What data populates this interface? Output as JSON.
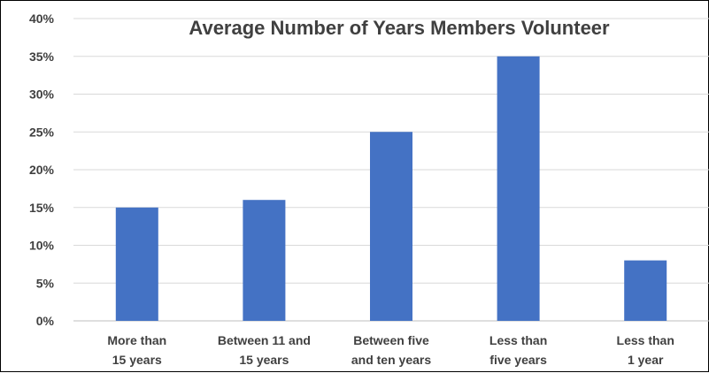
{
  "chart_data": {
    "type": "bar",
    "title": "Average Number of Years Members Volunteer",
    "categories": [
      [
        "More than",
        "15 years"
      ],
      [
        "Between 11 and",
        "15 years"
      ],
      [
        "Between five",
        "and ten years"
      ],
      [
        "Less than",
        "five years"
      ],
      [
        "Less than",
        "1 year"
      ]
    ],
    "values": [
      15,
      16,
      25,
      35,
      8
    ],
    "ylim": [
      0,
      40
    ],
    "yticks": [
      "0%",
      "5%",
      "10%",
      "15%",
      "20%",
      "25%",
      "30%",
      "35%",
      "40%"
    ],
    "grid": true,
    "bar_color": "#4472C4"
  }
}
